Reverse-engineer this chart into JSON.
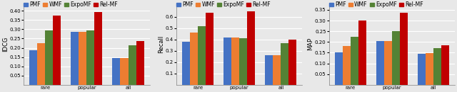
{
  "subplots": [
    {
      "ylabel": "IDCG",
      "ylim": [
        0,
        0.44
      ],
      "yticks": [
        0.05,
        0.1,
        0.15,
        0.2,
        0.25,
        0.3,
        0.35,
        0.4
      ],
      "categories": [
        "rare",
        "popular",
        "all"
      ],
      "series": {
        "PMF": [
          0.185,
          0.285,
          0.145
        ],
        "WMF": [
          0.225,
          0.285,
          0.145
        ],
        "ExpoMF": [
          0.295,
          0.295,
          0.215
        ],
        "Rel-MF": [
          0.375,
          0.395,
          0.235
        ]
      }
    },
    {
      "ylabel": "Recall",
      "ylim": [
        0,
        0.72
      ],
      "yticks": [
        0.1,
        0.2,
        0.3,
        0.4,
        0.5,
        0.6
      ],
      "categories": [
        "rare",
        "popular",
        "all"
      ],
      "series": {
        "PMF": [
          0.38,
          0.42,
          0.26
        ],
        "WMF": [
          0.46,
          0.42,
          0.26
        ],
        "ExpoMF": [
          0.52,
          0.41,
          0.37
        ],
        "Rel-MF": [
          0.64,
          0.65,
          0.4
        ]
      }
    },
    {
      "ylabel": "MAP",
      "ylim": [
        0,
        0.38
      ],
      "yticks": [
        0.05,
        0.1,
        0.15,
        0.2,
        0.25,
        0.3,
        0.35
      ],
      "categories": [
        "rare",
        "popular",
        "all"
      ],
      "series": {
        "PMF": [
          0.15,
          0.205,
          0.145
        ],
        "WMF": [
          0.18,
          0.205,
          0.148
        ],
        "ExpoMF": [
          0.225,
          0.25,
          0.17
        ],
        "Rel-MF": [
          0.3,
          0.335,
          0.185
        ]
      }
    }
  ],
  "legend_labels": [
    "PMF",
    "WMF",
    "ExpoMF",
    "Rel-MF"
  ],
  "colors": [
    "#4472c4",
    "#ed7d31",
    "#548235",
    "#c00000"
  ],
  "bar_width": 0.19,
  "background_color": "#e8e8e8",
  "legend_fontsize": 5.5,
  "tick_fontsize": 5.0,
  "label_fontsize": 6.0
}
